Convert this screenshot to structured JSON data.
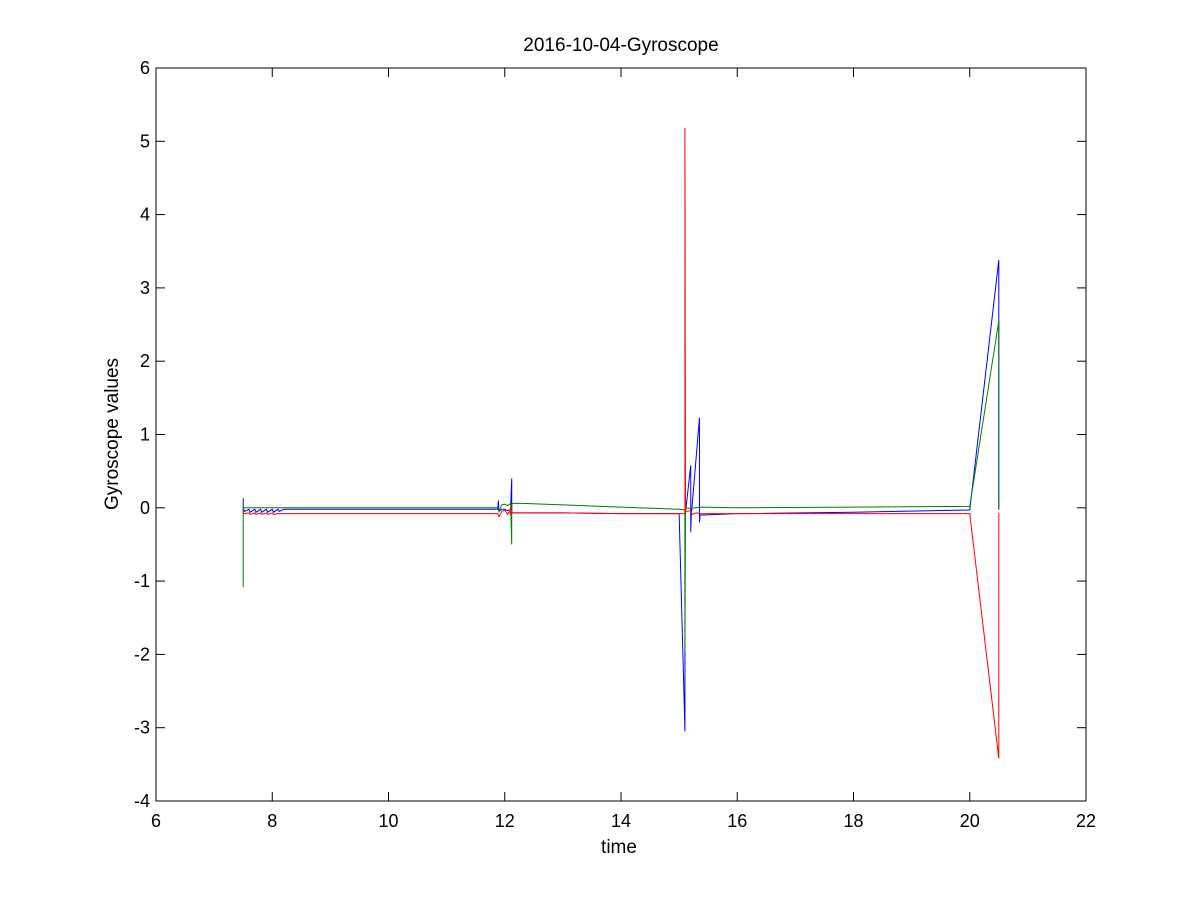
{
  "chart_data": {
    "type": "line",
    "title": "2016-10-04-Gyroscope",
    "xlabel": "time",
    "ylabel": "Gyroscope values",
    "xlim": [
      6,
      22
    ],
    "ylim": [
      -4,
      6
    ],
    "xticks": [
      6,
      8,
      10,
      12,
      14,
      16,
      18,
      20,
      22
    ],
    "yticks": [
      -4,
      -3,
      -2,
      -1,
      0,
      1,
      2,
      3,
      4,
      5,
      6
    ],
    "grid": false,
    "legend": "none",
    "series": [
      {
        "color": "#0000ff",
        "x": [
          7.5,
          7.5,
          7.51,
          7.52,
          7.6,
          7.62,
          7.7,
          7.72,
          7.8,
          7.82,
          7.9,
          7.92,
          8.0,
          8.02,
          8.1,
          8.12,
          8.2,
          11.88,
          11.89,
          11.9,
          11.95,
          12.0,
          12.05,
          12.1,
          12.12,
          12.12,
          12.13,
          12.2,
          13.0,
          14.0,
          15.0,
          15.1,
          15.1,
          15.11,
          15.2,
          15.2,
          15.21,
          15.35,
          15.35,
          15.36,
          16.0,
          18.0,
          20.0,
          20.5,
          20.5,
          20.51
        ],
        "y": [
          0.13,
          -0.02,
          -0.02,
          -0.05,
          -0.02,
          -0.06,
          -0.02,
          -0.06,
          -0.02,
          -0.06,
          -0.02,
          -0.06,
          -0.02,
          -0.06,
          -0.02,
          -0.05,
          -0.02,
          -0.02,
          0.1,
          -0.05,
          -0.02,
          -0.02,
          -0.04,
          -0.02,
          0.4,
          -0.06,
          -0.07,
          -0.07,
          -0.07,
          -0.08,
          -0.08,
          -3.05,
          -0.05,
          -0.06,
          0.58,
          -0.33,
          -0.1,
          1.23,
          -0.2,
          -0.1,
          -0.08,
          -0.06,
          -0.03,
          3.38,
          -0.02,
          -0.02
        ]
      },
      {
        "color": "#008000",
        "x": [
          7.5,
          7.5,
          7.51,
          7.6,
          8.0,
          11.88,
          11.9,
          11.95,
          12.0,
          12.05,
          12.1,
          12.12,
          12.12,
          12.13,
          12.2,
          12.3,
          13.0,
          14.0,
          15.0,
          15.1,
          15.1,
          15.11,
          15.2,
          15.35,
          16.0,
          18.0,
          20.0,
          20.5,
          20.5,
          20.51
        ],
        "y": [
          -1.08,
          0.0,
          0.0,
          0.0,
          0.0,
          0.0,
          -0.05,
          0.04,
          0.05,
          0.03,
          0.06,
          -0.5,
          0.05,
          0.06,
          0.06,
          0.06,
          0.04,
          0.01,
          -0.02,
          -0.03,
          -1.95,
          0.0,
          -0.01,
          0.01,
          0.0,
          0.01,
          0.02,
          2.55,
          0.02,
          0.02
        ]
      },
      {
        "color": "#ff0000",
        "x": [
          7.5,
          7.5,
          7.51,
          7.6,
          7.62,
          7.7,
          7.72,
          7.8,
          7.82,
          7.9,
          7.92,
          8.0,
          8.02,
          8.1,
          8.2,
          11.88,
          11.9,
          11.95,
          12.0,
          12.05,
          12.08,
          12.1,
          12.12,
          12.12,
          12.13,
          13.0,
          14.0,
          15.0,
          15.1,
          15.1,
          15.11,
          15.2,
          15.22,
          15.3,
          15.35,
          15.36,
          16.0,
          18.0,
          20.0,
          20.5,
          20.5,
          20.51
        ],
        "y": [
          -0.03,
          -0.08,
          -0.08,
          -0.07,
          -0.09,
          -0.07,
          -0.09,
          -0.07,
          -0.09,
          -0.07,
          -0.09,
          -0.07,
          -0.09,
          -0.08,
          -0.08,
          -0.08,
          -0.12,
          -0.05,
          -0.03,
          -0.09,
          -0.05,
          -0.08,
          0.03,
          -0.07,
          -0.07,
          -0.07,
          -0.08,
          -0.08,
          -0.08,
          5.18,
          -0.05,
          -0.04,
          -0.09,
          -0.07,
          -0.08,
          -0.08,
          -0.08,
          -0.08,
          -0.08,
          -3.42,
          -0.08,
          -0.08
        ]
      }
    ]
  }
}
